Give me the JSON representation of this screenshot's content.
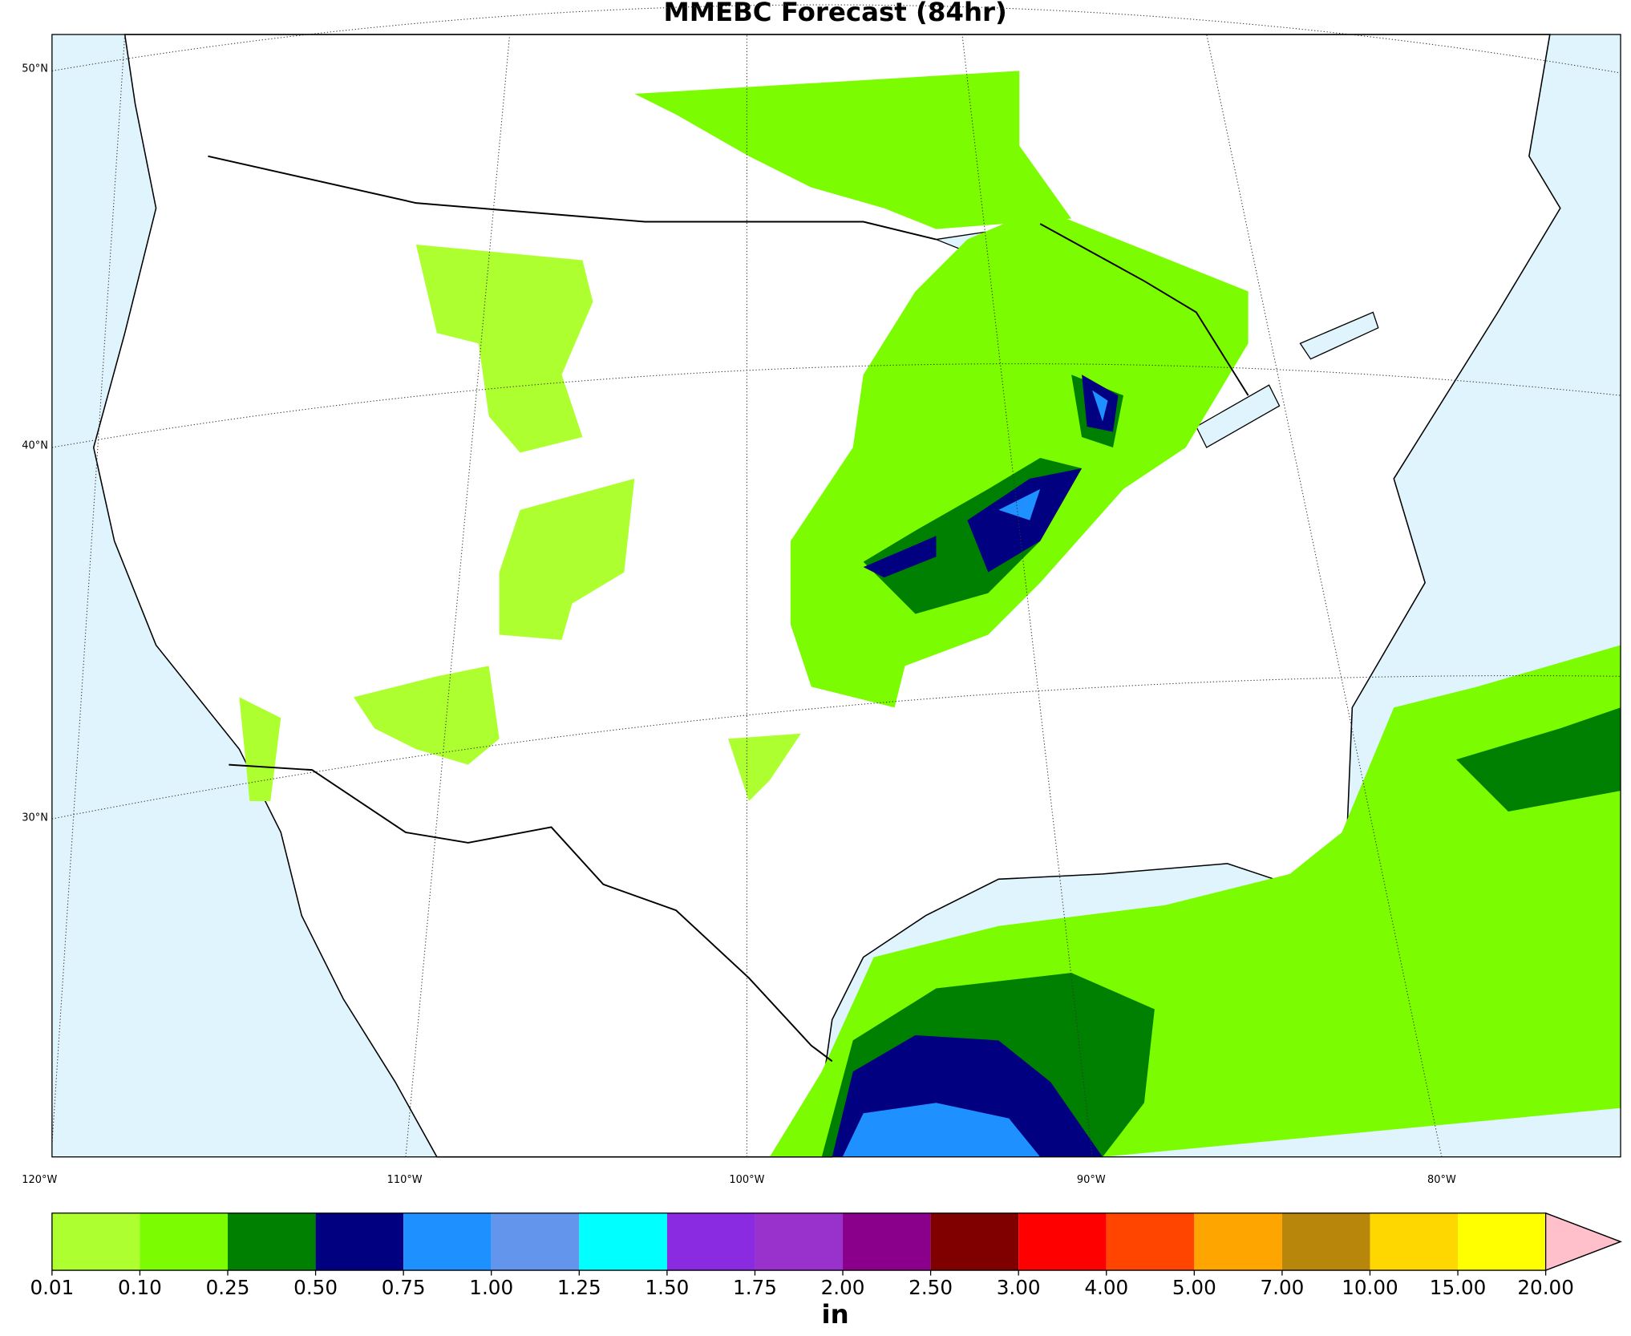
{
  "title": "MMEBC Forecast (84hr)",
  "lat_labels": [
    "50°N",
    "40°N",
    "30°N"
  ],
  "lon_labels": [
    "120°W",
    "110°W",
    "100°W",
    "90°W",
    "80°W"
  ],
  "colorbar": {
    "ticks": [
      {
        "value": 0.01,
        "label": "0.01"
      },
      {
        "value": 0.1,
        "label": "0.10"
      },
      {
        "value": 0.25,
        "label": "0.25"
      },
      {
        "value": 0.5,
        "label": "0.50"
      },
      {
        "value": 0.75,
        "label": "0.75"
      },
      {
        "value": 1,
        "label": "1.00"
      },
      {
        "value": 1.25,
        "label": "1.25"
      },
      {
        "value": 1.5,
        "label": "1.50"
      },
      {
        "value": 1.75,
        "label": "1.75"
      },
      {
        "value": 2,
        "label": "2.00"
      },
      {
        "value": 2.5,
        "label": "2.50"
      },
      {
        "value": 3,
        "label": "3.00"
      },
      {
        "value": 4,
        "label": "4.00"
      },
      {
        "value": 5,
        "label": "5.00"
      },
      {
        "value": 7,
        "label": "7.00"
      },
      {
        "value": 10,
        "label": "10.00"
      },
      {
        "value": 15,
        "label": "15.00"
      },
      {
        "value": 20,
        "label": "20.00"
      }
    ],
    "colors": [
      "#adff2f",
      "#7cfc00",
      "#008000",
      "#000080",
      "#1e90ff",
      "#6495ed",
      "#00ffff",
      "#8a2be2",
      "#9932cc",
      "#8b008b",
      "#800000",
      "#ff0000",
      "#ff4500",
      "#ffa500",
      "#b8860b",
      "#ffd700",
      "#ffff00"
    ],
    "extend_color": "#ffc0cb",
    "label": "in"
  }
}
